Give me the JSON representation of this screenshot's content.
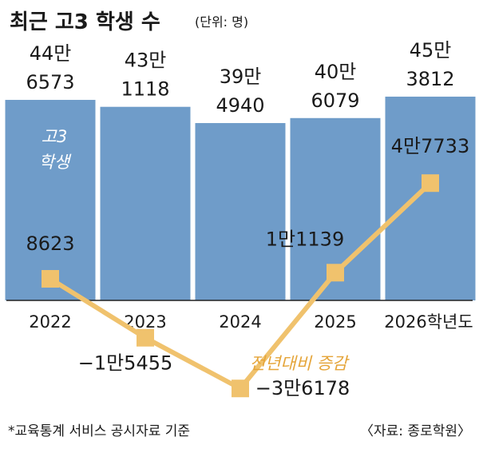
{
  "title": "최근 고3 학생 수",
  "unit": "(단위: 명)",
  "footnote": "*교육통계 서비스 공시자료 기준",
  "source": "〈자료: 종로학원〉",
  "colors": {
    "bar": "#6f9cc9",
    "line": "#f0c26d",
    "text": "#1a1a1a",
    "axis": "#222222",
    "bar_label_inside": "#ffffff",
    "line_legend": "#e5a53a"
  },
  "chart_data": {
    "type": "bar",
    "categories": [
      "2022",
      "2023",
      "2024",
      "2025",
      "2026학년도"
    ],
    "series": [
      {
        "name": "고3 학생",
        "type": "bar",
        "values": [
          446573,
          431118,
          394940,
          406079,
          453812
        ],
        "labels": [
          [
            "44만",
            "6573"
          ],
          [
            "43만",
            "1118"
          ],
          [
            "39만",
            "4940"
          ],
          [
            "40만",
            "6079"
          ],
          [
            "45만",
            "3812"
          ]
        ]
      },
      {
        "name": "전년대비 증감",
        "type": "line",
        "values": [
          8623,
          -15455,
          -36178,
          11139,
          47733
        ],
        "labels": [
          "8623",
          "−1만5455",
          "−3만6178",
          "1만1139",
          "4만7733"
        ]
      }
    ],
    "bar_ylim": [
      0,
      500000
    ],
    "line_ylim": [
      -45000,
      65000
    ]
  }
}
